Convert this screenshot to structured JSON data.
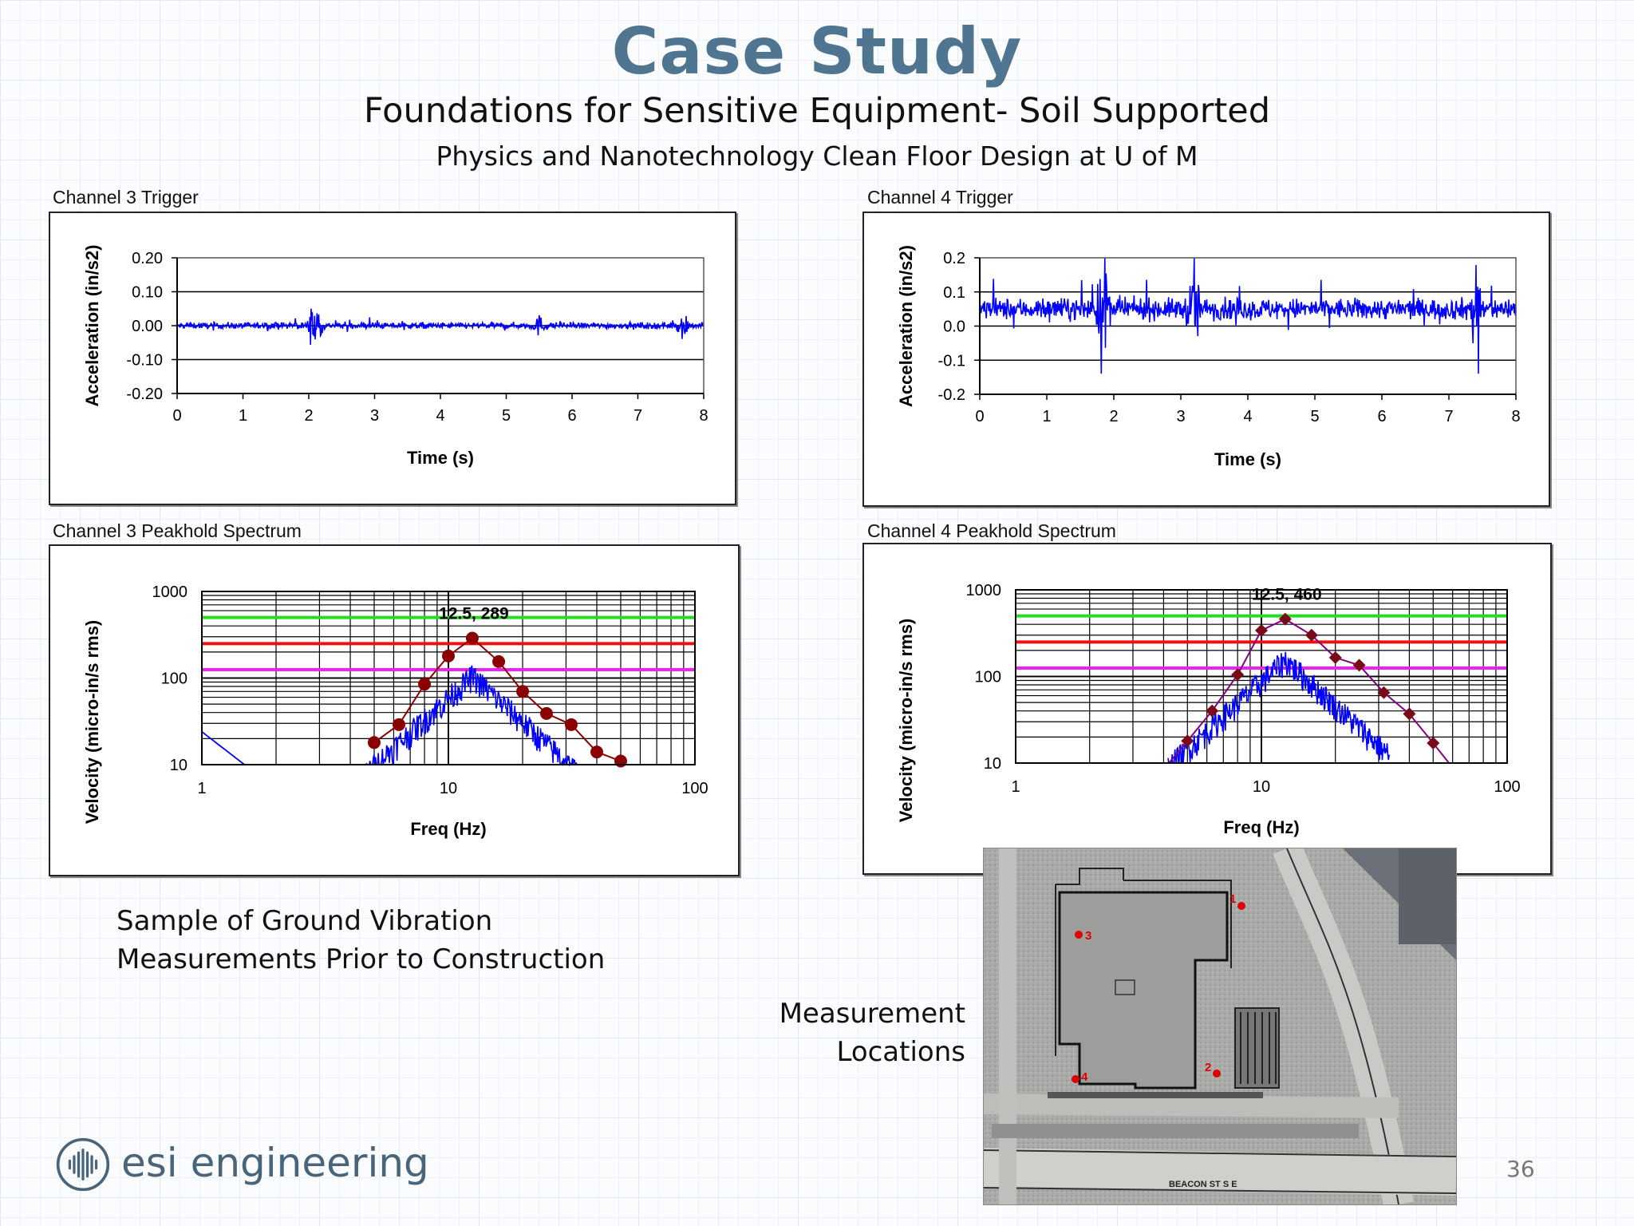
{
  "slide": {
    "title": "Case Study",
    "subtitle": "Foundations for Sensitive Equipment- Soil Supported",
    "subsubtitle": "Physics and Nanotechnology Clean Floor Design at U of M",
    "caption_left": [
      "Sample of Ground Vibration",
      "Measurements Prior to Construction"
    ],
    "caption_map": [
      "Measurement",
      "Locations"
    ],
    "company": "esi engineering",
    "page_number": "36",
    "map_labels": [
      "1",
      "2",
      "3",
      "4"
    ],
    "map_street": "BEACON ST S E"
  },
  "colors": {
    "title": "#4f7590",
    "signal": "#0000ff",
    "peak_ch3": "#8b0000",
    "peak_ch4": "#7a0a1a",
    "peak_line_ch4": "#800080",
    "limit_green": "#22dd22",
    "limit_red": "#ee1111",
    "limit_magenta": "#ee22ee"
  },
  "chart_data": [
    {
      "id": "ch3_trigger",
      "type": "line",
      "title": "Channel 3 Trigger",
      "xlabel": "Time (s)",
      "ylabel": "Acceleration (in/s2)",
      "xlim": [
        0,
        8
      ],
      "ylim": [
        -0.2,
        0.2
      ],
      "xticks": [
        "0",
        "1",
        "2",
        "3",
        "4",
        "5",
        "6",
        "7",
        "8"
      ],
      "yticks": [
        "0.20",
        "0.10",
        "0.00",
        "-0.10",
        "-0.20"
      ],
      "grid": "horizontal",
      "series": [
        {
          "amplitude_baseline": 0.012,
          "bursts": [
            {
              "t": 2.1,
              "amplitude": 0.09
            },
            {
              "t": 5.5,
              "amplitude": 0.03
            },
            {
              "t": 7.7,
              "amplitude": 0.04
            }
          ],
          "peak_max": 0.1,
          "peak_min": -0.11
        }
      ]
    },
    {
      "id": "ch4_trigger",
      "type": "line",
      "title": "Channel 4 Trigger",
      "xlabel": "Time (s)",
      "ylabel": "Acceleration (in/s2)",
      "xlim": [
        0,
        8
      ],
      "ylim": [
        -0.2,
        0.2
      ],
      "xticks": [
        "0",
        "1",
        "2",
        "3",
        "4",
        "5",
        "6",
        "7",
        "8"
      ],
      "yticks": [
        "0.2",
        "0.1",
        "0.0",
        "-0.1",
        "-0.2"
      ],
      "grid": "horizontal",
      "series": [
        {
          "offset": 0.05,
          "amplitude_baseline": 0.04,
          "bursts": [
            {
              "t": 1.85,
              "amplitude": 0.18
            },
            {
              "t": 3.2,
              "amplitude": 0.14
            },
            {
              "t": 7.4,
              "amplitude": 0.14
            }
          ],
          "peak_max": 0.2,
          "peak_min": -0.14
        }
      ]
    },
    {
      "id": "ch3_spectrum",
      "type": "line",
      "title": "Channel 3 Peakhold Spectrum",
      "xlabel": "Freq (Hz)",
      "ylabel": "Velocity (micro-in/s rms)",
      "xscale": "log",
      "yscale": "log",
      "xlim": [
        1,
        100
      ],
      "ylim": [
        10,
        1000
      ],
      "xticks": [
        "1",
        "10",
        "100"
      ],
      "yticks": [
        "1000",
        "100",
        "10"
      ],
      "limits": [
        {
          "color": "green",
          "value": 500
        },
        {
          "color": "red",
          "value": 250
        },
        {
          "color": "magenta",
          "value": 125
        }
      ],
      "peak_series": {
        "x": [
          5,
          6.3,
          8,
          10,
          12.5,
          16,
          20,
          25,
          31.5,
          40,
          50
        ],
        "y": [
          18,
          29,
          85,
          180,
          289,
          155,
          70,
          39,
          29,
          14,
          11
        ]
      },
      "annotation": {
        "x": 12.5,
        "y": 289,
        "text": "12.5, 289"
      },
      "spectrum_peak": {
        "x": 12.5,
        "y": 125
      }
    },
    {
      "id": "ch4_spectrum",
      "type": "line",
      "title": "Channel 4 Peakhold Spectrum",
      "xlabel": "Freq (Hz)",
      "ylabel": "Velocity (micro-in/s rms)",
      "xscale": "log",
      "yscale": "log",
      "xlim": [
        1,
        100
      ],
      "ylim": [
        10,
        1000
      ],
      "xticks": [
        "1",
        "10",
        "100"
      ],
      "yticks": [
        "1000",
        "100",
        "10"
      ],
      "limits": [
        {
          "color": "green",
          "value": 500
        },
        {
          "color": "red",
          "value": 250
        },
        {
          "color": "magenta",
          "value": 125
        }
      ],
      "peak_series": {
        "x": [
          5,
          6.3,
          8,
          10,
          12.5,
          16,
          20,
          25,
          31.5,
          40,
          50
        ],
        "y": [
          18,
          40,
          105,
          340,
          460,
          300,
          165,
          135,
          65,
          37,
          17
        ]
      },
      "annotation": {
        "x": 12.5,
        "y": 460,
        "text": "12.5, 460"
      },
      "spectrum_peak": {
        "x": 12.5,
        "y": 185
      }
    }
  ]
}
